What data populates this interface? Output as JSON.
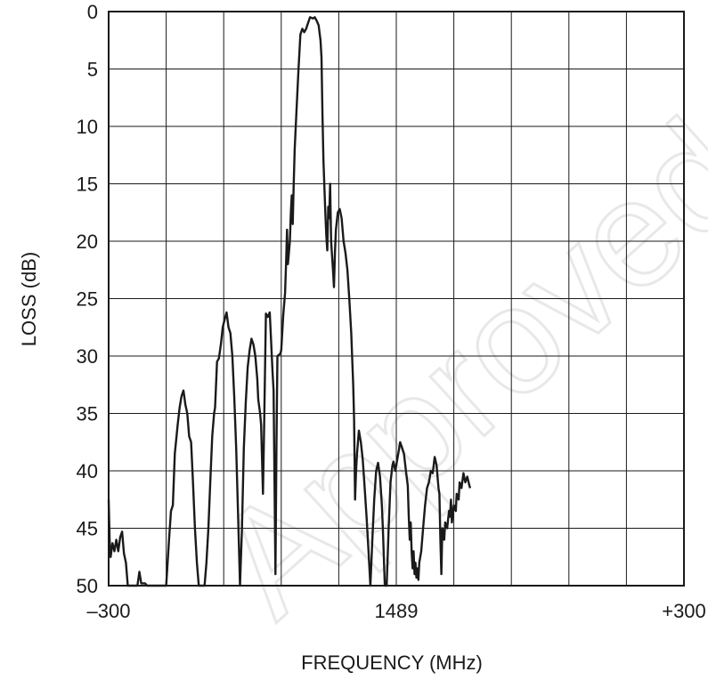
{
  "chart_data": {
    "type": "line",
    "title": "",
    "xlabel": "FREQUENCY (MHz)",
    "ylabel": "LOSS (dB)",
    "xlim": [
      -300,
      300
    ],
    "ylim": [
      0,
      50
    ],
    "y_inverted": true,
    "grid": true,
    "x_tick_labels": [
      {
        "value": -300,
        "label": "–300"
      },
      {
        "value": 0,
        "label": "1489"
      },
      {
        "value": 300,
        "label": "+300"
      }
    ],
    "x_grid_values": [
      -300,
      -240,
      -180,
      -120,
      -60,
      0,
      60,
      120,
      180,
      240,
      300
    ],
    "y_ticks": [
      0,
      5,
      10,
      15,
      20,
      25,
      30,
      35,
      40,
      45,
      50
    ],
    "watermark": "Approved",
    "series": [
      {
        "color": "#1a1a1a",
        "points": [
          [
            -300,
            42.5
          ],
          [
            -299,
            46
          ],
          [
            -298,
            47.5
          ],
          [
            -296,
            46.3
          ],
          [
            -294,
            47
          ],
          [
            -292,
            46
          ],
          [
            -290,
            47
          ],
          [
            -288,
            45.8
          ],
          [
            -286,
            45.3
          ],
          [
            -284,
            47.2
          ],
          [
            -282,
            48
          ],
          [
            -280,
            50
          ],
          [
            -275,
            50
          ],
          [
            -270,
            50
          ],
          [
            -268,
            48.8
          ],
          [
            -266,
            49.8
          ],
          [
            -262,
            49.8
          ],
          [
            -260,
            50
          ],
          [
            -255,
            50
          ],
          [
            -250,
            50
          ],
          [
            -245,
            50
          ],
          [
            -240,
            50
          ],
          [
            -237,
            46
          ],
          [
            -235,
            43.5
          ],
          [
            -233,
            43
          ],
          [
            -231,
            38.5
          ],
          [
            -228,
            36
          ],
          [
            -226,
            34.5
          ],
          [
            -224,
            33.5
          ],
          [
            -222,
            33
          ],
          [
            -220,
            34.2
          ],
          [
            -218,
            35
          ],
          [
            -216,
            37
          ],
          [
            -214,
            37.5
          ],
          [
            -212,
            41
          ],
          [
            -210,
            45
          ],
          [
            -208,
            48
          ],
          [
            -206,
            50
          ],
          [
            -200,
            50
          ],
          [
            -198,
            48
          ],
          [
            -196,
            45
          ],
          [
            -194,
            41
          ],
          [
            -192,
            37
          ],
          [
            -190,
            35
          ],
          [
            -189,
            34.5
          ],
          [
            -187,
            30.5
          ],
          [
            -185,
            30.2
          ],
          [
            -183,
            29
          ],
          [
            -181,
            27.5
          ],
          [
            -179,
            26.8
          ],
          [
            -177,
            26.2
          ],
          [
            -175,
            27.5
          ],
          [
            -173,
            28
          ],
          [
            -171,
            30
          ],
          [
            -169,
            33.5
          ],
          [
            -167,
            38
          ],
          [
            -165,
            44
          ],
          [
            -163,
            50
          ],
          [
            -161,
            45
          ],
          [
            -159,
            38
          ],
          [
            -157,
            34
          ],
          [
            -155,
            31
          ],
          [
            -153,
            29.5
          ],
          [
            -151,
            28.5
          ],
          [
            -149,
            29
          ],
          [
            -147,
            30
          ],
          [
            -145,
            32
          ],
          [
            -144,
            33.8
          ],
          [
            -142,
            35
          ],
          [
            -141,
            36
          ],
          [
            -139,
            42
          ],
          [
            -138,
            37
          ],
          [
            -136,
            26.3
          ],
          [
            -134,
            26.6
          ],
          [
            -132,
            26.2
          ],
          [
            -131,
            28
          ],
          [
            -129,
            31.5
          ],
          [
            -128,
            33
          ],
          [
            -126,
            49
          ],
          [
            -125,
            38
          ],
          [
            -124,
            30
          ],
          [
            -121,
            29.8
          ],
          [
            -120,
            29.5
          ],
          [
            -118,
            26.5
          ],
          [
            -116,
            24.5
          ],
          [
            -115,
            22
          ],
          [
            -114,
            19
          ],
          [
            -113,
            22
          ],
          [
            -111,
            20
          ],
          [
            -110,
            17.5
          ],
          [
            -109,
            16
          ],
          [
            -108,
            18.5
          ],
          [
            -107,
            15
          ],
          [
            -106,
            12
          ],
          [
            -104,
            8.5
          ],
          [
            -102,
            5
          ],
          [
            -100,
            2
          ],
          [
            -98,
            1.5
          ],
          [
            -96,
            1.8
          ],
          [
            -94,
            1.5
          ],
          [
            -92,
            1
          ],
          [
            -90,
            0.5
          ],
          [
            -87,
            0.6
          ],
          [
            -85,
            0.5
          ],
          [
            -83,
            0.8
          ],
          [
            -81,
            1.2
          ],
          [
            -79,
            2.5
          ],
          [
            -78,
            4
          ],
          [
            -77,
            9
          ],
          [
            -76,
            13
          ],
          [
            -74,
            17.5
          ],
          [
            -73,
            19.5
          ],
          [
            -72,
            20.8
          ],
          [
            -71,
            17
          ],
          [
            -70,
            18
          ],
          [
            -69,
            15
          ],
          [
            -68,
            20
          ],
          [
            -66,
            22.5
          ],
          [
            -65,
            24
          ],
          [
            -64,
            21
          ],
          [
            -63,
            19
          ],
          [
            -61,
            17.5
          ],
          [
            -59,
            17.2
          ],
          [
            -57,
            18
          ],
          [
            -55,
            20
          ],
          [
            -53,
            21
          ],
          [
            -51,
            22.5
          ],
          [
            -49,
            25
          ],
          [
            -47,
            28
          ],
          [
            -45,
            32.5
          ],
          [
            -44,
            35.5
          ],
          [
            -43,
            42.5
          ],
          [
            -42,
            40
          ],
          [
            -41,
            38.5
          ],
          [
            -39,
            36.5
          ],
          [
            -37,
            37.5
          ],
          [
            -35,
            39
          ],
          [
            -33,
            41.5
          ],
          [
            -31,
            44
          ],
          [
            -29,
            47
          ],
          [
            -27,
            50
          ],
          [
            -25,
            46
          ],
          [
            -23,
            42.5
          ],
          [
            -21,
            40
          ],
          [
            -19,
            39.3
          ],
          [
            -17,
            40.5
          ],
          [
            -15,
            43
          ],
          [
            -14,
            45
          ],
          [
            -12,
            50
          ],
          [
            -10,
            50
          ],
          [
            -8,
            45
          ],
          [
            -6,
            41
          ],
          [
            -4,
            39.5
          ],
          [
            -3,
            39.2
          ],
          [
            -1,
            40
          ],
          [
            0,
            39.5
          ],
          [
            2,
            38.5
          ],
          [
            4,
            37.5
          ],
          [
            6,
            38
          ],
          [
            8,
            38.5
          ],
          [
            10,
            40
          ],
          [
            12,
            41.3
          ],
          [
            13,
            44
          ],
          [
            14,
            46
          ],
          [
            15,
            44.5
          ],
          [
            16,
            47
          ],
          [
            17,
            48.5
          ],
          [
            18,
            47
          ],
          [
            19,
            49
          ],
          [
            20,
            48
          ],
          [
            21,
            49.3
          ],
          [
            22,
            48.5
          ],
          [
            23,
            49.5
          ],
          [
            24,
            48
          ],
          [
            26,
            47
          ],
          [
            28,
            45
          ],
          [
            30,
            43
          ],
          [
            32,
            41.5
          ],
          [
            34,
            41
          ],
          [
            36,
            40
          ],
          [
            38,
            40.2
          ],
          [
            40,
            38.8
          ],
          [
            42,
            39.5
          ],
          [
            44,
            41.5
          ],
          [
            45,
            42
          ],
          [
            46,
            46
          ],
          [
            47,
            49
          ],
          [
            48,
            45
          ],
          [
            50,
            46
          ],
          [
            51,
            44.5
          ],
          [
            53,
            45
          ],
          [
            55,
            43.5
          ],
          [
            56,
            44
          ],
          [
            57,
            42.5
          ],
          [
            58,
            44.5
          ],
          [
            60,
            43
          ],
          [
            62,
            43.5
          ],
          [
            63,
            42
          ],
          [
            65,
            42.5
          ],
          [
            66,
            41
          ],
          [
            68,
            41.5
          ],
          [
            70,
            40.2
          ],
          [
            72,
            41
          ],
          [
            74,
            40.5
          ],
          [
            76,
            41.2
          ],
          [
            77,
            41.5
          ]
        ]
      }
    ]
  }
}
